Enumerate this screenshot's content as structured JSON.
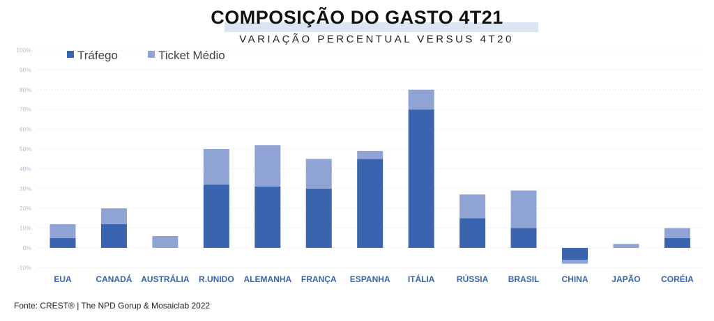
{
  "chart_data": {
    "type": "bar",
    "stacked": true,
    "title": "COMPOSIÇÃO DO GASTO 4T21",
    "subtitle": "VARIAÇÃO PERCENTUAL VERSUS 4T20",
    "categories": [
      "EUA",
      "CANADÁ",
      "AUSTRÁLIA",
      "R.UNIDO",
      "ALEMANHA",
      "FRANÇA",
      "ESPANHA",
      "ITÁLIA",
      "RÚSSIA",
      "BRASIL",
      "CHINA",
      "JAPÃO",
      "CORÉIA"
    ],
    "series": [
      {
        "name": "Tráfego",
        "color": "#3a64ad",
        "values": [
          5,
          12,
          0,
          32,
          31,
          30,
          45,
          70,
          15,
          10,
          -6,
          0,
          5
        ]
      },
      {
        "name": "Ticket Médio",
        "color": "#8fa4d4",
        "values": [
          7,
          8,
          6,
          18,
          21,
          15,
          4,
          10,
          12,
          19,
          -2,
          2,
          5
        ]
      }
    ],
    "ylim": [
      -10,
      100
    ],
    "yticks": [
      "-10%",
      "0%",
      "10%",
      "20%",
      "30%",
      "40%",
      "50%",
      "60%",
      "70%",
      "80%",
      "90%",
      "100%"
    ],
    "ytick_values": [
      -10,
      0,
      10,
      20,
      30,
      40,
      50,
      60,
      70,
      80,
      90,
      100
    ],
    "grid": true,
    "legend": "top-left",
    "xlabel": "",
    "ylabel": ""
  },
  "source": "Fonte: CREST® | The NPD Gorup &  Mosaiclab 2022"
}
